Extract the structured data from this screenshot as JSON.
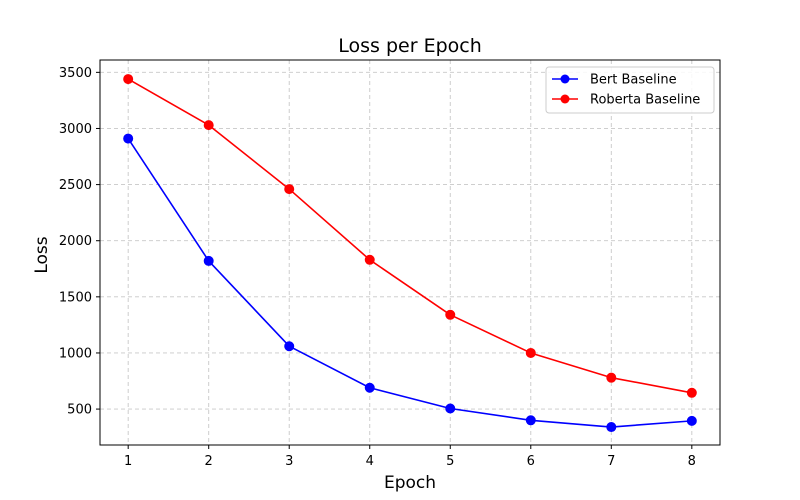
{
  "chart_data": {
    "type": "line",
    "title": "Loss per Epoch",
    "xlabel": "Epoch",
    "ylabel": "Loss",
    "x": [
      1,
      2,
      3,
      4,
      5,
      6,
      7,
      8
    ],
    "x_ticks": [
      1,
      2,
      3,
      4,
      5,
      6,
      7,
      8
    ],
    "y_ticks": [
      500,
      1000,
      1500,
      2000,
      2500,
      3000,
      3500
    ],
    "xlim": [
      0.65,
      8.35
    ],
    "ylim": [
      180,
      3610
    ],
    "grid": true,
    "legend_position": "top-right",
    "series": [
      {
        "name": "Bert Baseline",
        "color": "#0000ff",
        "values": [
          2910,
          1820,
          1060,
          690,
          505,
          400,
          340,
          395
        ]
      },
      {
        "name": "Roberta Baseline",
        "color": "#ff0000",
        "values": [
          3440,
          3030,
          2460,
          1830,
          1340,
          1000,
          780,
          645
        ]
      }
    ]
  }
}
